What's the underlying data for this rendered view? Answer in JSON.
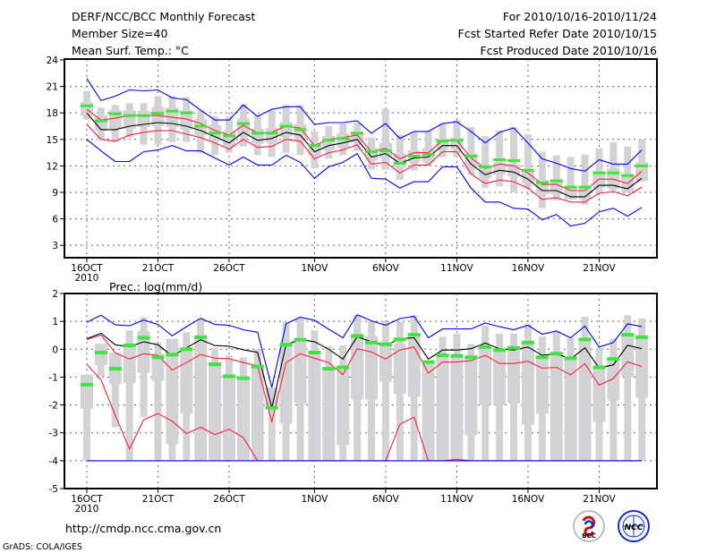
{
  "header": {
    "title": "DERF/NCC/BCC Monthly Forecast",
    "member_size": "Member Size=40",
    "variable": "Mean Surf. Temp.: °C",
    "period": "For 2010/10/16-2010/11/24",
    "started": "Fcst Started Refer Date 2010/10/15",
    "produced": "Fcst Produced Date 2010/10/16"
  },
  "footer": {
    "url": "http://cmdp.ncc.cma.gov.cn",
    "credit": "GrADS: COLA/IGES",
    "logos": [
      "BCC",
      "NCC"
    ]
  },
  "colors": {
    "max_min": "#0000ff",
    "spread": "#ff1e3c",
    "mean": "#000000",
    "obs": "#3ce63c",
    "box": "#d3d3d6"
  },
  "chart_data": [
    {
      "type": "line",
      "title": "Mean Surf. Temp.: °C",
      "xlabel": "",
      "ylabel": "",
      "x_days": 40,
      "x_tick_labels": [
        {
          "day": 0,
          "label": "16OCT"
        },
        {
          "day": 5,
          "label": "21OCT"
        },
        {
          "day": 10,
          "label": "26OCT"
        },
        {
          "day": 16,
          "label": "1NOV"
        },
        {
          "day": 21,
          "label": "6NOV"
        },
        {
          "day": 26,
          "label": "11NOV"
        },
        {
          "day": 31,
          "label": "16NOV"
        },
        {
          "day": 36,
          "label": "21NOV"
        }
      ],
      "year_label": "2010",
      "y_ticks": [
        3,
        6,
        9,
        12,
        15,
        18,
        21,
        24
      ],
      "ylim": [
        1.6,
        24.1
      ],
      "xlim": [
        -1.57,
        40.06
      ],
      "grid": true,
      "series": [
        {
          "name": "max",
          "color": "#0000ff",
          "values": [
            21.9,
            19.4,
            19.9,
            20.6,
            20.5,
            20.6,
            19.7,
            19.5,
            18.3,
            17.2,
            17.2,
            18.9,
            17.6,
            18.4,
            18.7,
            18.7,
            16.7,
            16.9,
            16.9,
            17.1,
            15.7,
            16.8,
            15.1,
            15.9,
            15.9,
            16.8,
            17.0,
            15.9,
            14.6,
            15.8,
            16.3,
            14.6,
            12.8,
            12.3,
            11.7,
            11.4,
            12.7,
            12.2,
            12.2,
            13.8
          ]
        },
        {
          "name": "upper",
          "color": "#ff1e3c",
          "values": [
            18.4,
            17.2,
            17.4,
            17.7,
            17.7,
            17.7,
            17.5,
            17.3,
            16.8,
            16.0,
            15.5,
            16.6,
            15.7,
            15.8,
            16.5,
            16.3,
            14.3,
            15.0,
            15.2,
            15.5,
            13.6,
            14.0,
            12.8,
            13.5,
            13.5,
            14.9,
            14.9,
            12.9,
            11.7,
            12.2,
            12.0,
            11.2,
            9.9,
            9.9,
            9.2,
            9.2,
            10.5,
            10.5,
            10.0,
            11.4
          ]
        },
        {
          "name": "mean",
          "color": "#000000",
          "values": [
            18.0,
            16.1,
            16.1,
            16.5,
            16.7,
            16.9,
            16.8,
            16.5,
            16.0,
            15.3,
            14.6,
            15.8,
            14.9,
            15.1,
            15.8,
            15.5,
            13.6,
            14.3,
            14.6,
            15.0,
            13.0,
            13.4,
            12.3,
            12.9,
            13.0,
            14.3,
            14.3,
            12.2,
            11.0,
            11.5,
            11.3,
            10.5,
            9.2,
            9.2,
            8.5,
            8.5,
            9.8,
            9.8,
            9.4,
            10.6
          ]
        },
        {
          "name": "lower",
          "color": "#ff1e3c",
          "values": [
            16.7,
            15.0,
            14.8,
            15.5,
            15.8,
            16.0,
            16.0,
            15.6,
            15.2,
            14.6,
            13.9,
            15.0,
            14.1,
            14.2,
            15.0,
            14.8,
            12.8,
            13.5,
            13.8,
            14.4,
            12.2,
            12.4,
            11.2,
            12.1,
            12.1,
            13.6,
            13.6,
            11.1,
            10.0,
            10.4,
            10.2,
            9.5,
            8.2,
            8.4,
            7.9,
            7.9,
            8.9,
            9.1,
            8.6,
            9.6
          ]
        },
        {
          "name": "min",
          "color": "#0000ff",
          "values": [
            15.0,
            13.7,
            12.5,
            12.5,
            13.6,
            13.8,
            14.3,
            13.7,
            13.7,
            12.9,
            12.1,
            13.0,
            12.1,
            12.1,
            13.2,
            12.4,
            10.6,
            11.9,
            12.4,
            13.4,
            10.6,
            10.5,
            9.5,
            10.2,
            10.2,
            11.9,
            11.9,
            9.5,
            7.9,
            7.9,
            7.2,
            7.1,
            5.9,
            6.5,
            5.2,
            5.5,
            6.8,
            7.2,
            6.3,
            7.3
          ]
        }
      ],
      "observed": [
        18.8,
        17.1,
        17.9,
        17.7,
        17.7,
        17.95,
        18.2,
        18.0,
        16.5,
        15.7,
        15.4,
        16.8,
        15.7,
        15.7,
        16.5,
        16.1,
        14.3,
        14.9,
        15.1,
        15.7,
        13.6,
        13.7,
        12.3,
        13.1,
        13.3,
        14.8,
        14.9,
        13.1,
        11.9,
        12.7,
        12.6,
        11.5,
        10.1,
        10.3,
        9.6,
        9.6,
        11.2,
        11.2,
        10.9,
        12.0
      ],
      "whisker_high": [
        20.5,
        18.6,
        18.9,
        19.1,
        19.1,
        19.9,
        19.9,
        19.8,
        18.3,
        17.6,
        17.6,
        19.0,
        17.8,
        18.3,
        18.9,
        18.9,
        15.9,
        16.5,
        16.8,
        16.9,
        15.2,
        18.5,
        15.5,
        15.8,
        15.9,
        16.8,
        17.2,
        16.4,
        15.4,
        16.0,
        16.4,
        15.6,
        13.6,
        13.2,
        13.0,
        13.3,
        14.0,
        14.7,
        14.2,
        15.0
      ],
      "whisker_low": [
        17.3,
        15.0,
        14.7,
        15.2,
        14.4,
        14.4,
        14.7,
        14.7,
        13.5,
        13.2,
        13.5,
        14.2,
        13.2,
        13.0,
        13.5,
        13.2,
        11.7,
        12.8,
        13.2,
        13.7,
        11.6,
        11.6,
        10.4,
        11.5,
        12.0,
        13.0,
        13.0,
        11.0,
        9.5,
        9.7,
        9.0,
        9.4,
        7.2,
        8.1,
        8.2,
        7.6,
        9.0,
        9.2,
        9.0,
        10.2
      ],
      "box_high": [
        19.2,
        17.7,
        18.3,
        18.3,
        18.2,
        18.7,
        18.6,
        18.3,
        17.3,
        16.6,
        16.0,
        17.4,
        16.2,
        16.3,
        17.0,
        16.7,
        14.6,
        15.4,
        15.7,
        15.9,
        14.0,
        14.6,
        13.4,
        13.8,
        14.0,
        15.1,
        15.2,
        13.4,
        11.9,
        12.4,
        12.2,
        11.5,
        10.4,
        10.5,
        9.7,
        9.7,
        11.4,
        11.7,
        11.1,
        12.4
      ],
      "box_low": [
        17.7,
        16.0,
        16.2,
        16.2,
        16.4,
        16.5,
        16.4,
        16.1,
        15.5,
        14.8,
        14.2,
        15.3,
        14.5,
        14.6,
        15.3,
        15.0,
        13.1,
        13.8,
        14.1,
        14.6,
        12.6,
        12.9,
        11.8,
        12.4,
        12.4,
        13.8,
        13.8,
        11.7,
        10.6,
        11.0,
        10.8,
        10.0,
        8.8,
        8.8,
        8.2,
        8.2,
        9.5,
        9.4,
        9.0,
        10.3
      ]
    },
    {
      "type": "line",
      "title": "Prec.: log(mm/d)",
      "xlabel": "",
      "ylabel": "",
      "x_days": 40,
      "x_tick_labels": [
        {
          "day": 0,
          "label": "16OCT"
        },
        {
          "day": 5,
          "label": "21OCT"
        },
        {
          "day": 10,
          "label": "26OCT"
        },
        {
          "day": 16,
          "label": "1NOV"
        },
        {
          "day": 21,
          "label": "6NOV"
        },
        {
          "day": 26,
          "label": "11NOV"
        },
        {
          "day": 31,
          "label": "16NOV"
        },
        {
          "day": 36,
          "label": "21NOV"
        }
      ],
      "year_label": "2010",
      "y_ticks": [
        -5,
        -4,
        -3,
        -2,
        -1,
        0,
        1,
        2
      ],
      "ylim": [
        -5,
        2
      ],
      "xlim": [
        -1.57,
        40.06
      ],
      "grid": true,
      "series": [
        {
          "name": "max",
          "color": "#0000ff",
          "values": [
            0.97,
            1.22,
            0.88,
            0.84,
            1.05,
            0.89,
            0.48,
            0.81,
            1.11,
            0.89,
            0.86,
            0.7,
            0.61,
            -1.37,
            0.91,
            1.15,
            1.04,
            0.72,
            0.41,
            1.24,
            1.02,
            0.86,
            1.1,
            1.18,
            0.41,
            0.73,
            0.73,
            0.73,
            0.94,
            0.81,
            0.7,
            0.86,
            0.54,
            0.65,
            0.41,
            0.83,
            0.08,
            0.24,
            0.91,
            0.81
          ]
        },
        {
          "name": "upper",
          "color": "#ff1e3c",
          "values": [
            0.35,
            0.51,
            -0.13,
            -0.35,
            -0.16,
            -0.22,
            -0.75,
            -0.48,
            -0.19,
            -0.32,
            -0.34,
            -0.48,
            -0.59,
            -2.61,
            -0.48,
            -0.16,
            -0.32,
            -0.48,
            -0.91,
            0.02,
            -0.1,
            -0.35,
            -0.03,
            0.08,
            -0.86,
            -0.46,
            -0.46,
            -0.41,
            -0.22,
            -0.51,
            -0.51,
            -0.43,
            -0.68,
            -0.65,
            -0.92,
            -0.52,
            -1.29,
            -1.05,
            -0.45,
            -0.62
          ]
        },
        {
          "name": "mean",
          "color": "#000000",
          "values": [
            0.38,
            0.57,
            0.16,
            0.09,
            0.27,
            0.16,
            -0.24,
            0.05,
            0.34,
            0.13,
            0.11,
            -0.02,
            -0.11,
            -2.1,
            0.16,
            0.35,
            0.27,
            0.0,
            -0.35,
            0.45,
            0.27,
            0.13,
            0.38,
            0.41,
            -0.35,
            -0.03,
            -0.03,
            0.02,
            0.22,
            0.02,
            -0.03,
            0.08,
            -0.22,
            -0.16,
            -0.35,
            0.05,
            -0.67,
            -0.56,
            0.14,
            0.02
          ]
        },
        {
          "name": "lower",
          "color": "#ff1e3c",
          "values": [
            -0.54,
            -1.1,
            -2.37,
            -3.58,
            -2.53,
            -2.31,
            -2.58,
            -3.03,
            -2.8,
            -3.06,
            -2.87,
            -3.17,
            -4,
            -4,
            -4,
            -4,
            -4,
            -4,
            -4,
            -4,
            -4,
            -4,
            -2.69,
            -2.44,
            -4,
            -4,
            -3.95,
            -4,
            -4,
            -4,
            -4,
            -4,
            -4,
            -4,
            -4,
            -4,
            -4,
            -4,
            -4,
            -4
          ]
        },
        {
          "name": "min",
          "color": "#0000ff",
          "values": [
            -4,
            -4,
            -4,
            -4,
            -4,
            -4,
            -4,
            -4,
            -4,
            -4,
            -4,
            -4,
            -4,
            -4,
            -4,
            -4,
            -4,
            -4,
            -4,
            -4,
            -4,
            -4,
            -4,
            -4,
            -4,
            -4,
            -4,
            -4,
            -4,
            -4,
            -4,
            -4,
            -4,
            -4,
            -4,
            -4,
            -4,
            -4,
            -4,
            -4
          ]
        }
      ],
      "observed": [
        -1.27,
        -0.12,
        -0.7,
        0.14,
        0.41,
        -0.29,
        -0.19,
        0.0,
        0.43,
        -0.54,
        -0.97,
        -1.04,
        -0.62,
        -2.1,
        0.16,
        0.34,
        -0.12,
        -0.7,
        -0.65,
        0.48,
        0.24,
        0.18,
        0.35,
        0.52,
        -0.46,
        -0.22,
        -0.24,
        -0.29,
        0.08,
        -0.03,
        0.05,
        0.24,
        -0.29,
        -0.16,
        -0.32,
        0.35,
        -0.65,
        -0.35,
        0.52,
        0.43
      ],
      "whisker_high": [
        -0.91,
        0.19,
        -0.13,
        0.68,
        1.15,
        0.24,
        0.38,
        0.61,
        1.1,
        0.05,
        -0.22,
        -0.29,
        0.0,
        -1.38,
        0.97,
        1.1,
        0.68,
        0.11,
        0.13,
        1.22,
        0.99,
        0.99,
        0.97,
        1.22,
        -0.43,
        0.45,
        0.56,
        0.19,
        0.84,
        0.56,
        0.56,
        0.91,
        0.45,
        0.65,
        0.41,
        1.16,
        0.05,
        0.38,
        1.22,
        1.1
      ],
      "whisker_low": [
        -4,
        -0.97,
        -2.8,
        -4,
        -2.44,
        -4,
        -4,
        -4,
        -4,
        -4,
        -4,
        -4,
        -4,
        -4,
        -4,
        -4,
        -4,
        -4,
        -4,
        -4,
        -4,
        -4,
        -4,
        -4,
        -4,
        -4,
        -4,
        -4,
        -4,
        -4,
        -4,
        -4,
        -4,
        -4,
        -4,
        -4,
        -4,
        -4,
        -4,
        -4
      ],
      "box_high": [
        -0.91,
        0.19,
        -0.13,
        0.19,
        0.65,
        -0.16,
        0.38,
        0.0,
        0.43,
        -0.54,
        -0.97,
        -1.04,
        -0.62,
        -1.38,
        0.16,
        0.34,
        -0.12,
        -0.7,
        -0.65,
        0.48,
        0.48,
        0.22,
        0.18,
        0.52,
        -0.46,
        -0.22,
        -0.24,
        -0.29,
        0.08,
        -0.03,
        0.05,
        0.24,
        -0.29,
        -0.16,
        -0.32,
        0.35,
        -0.65,
        -0.35,
        0.52,
        0.43
      ],
      "box_low": [
        -2.13,
        -0.57,
        -1.26,
        -1.22,
        -0.84,
        -1.13,
        -3.41,
        -2.31,
        -4,
        -4,
        -4,
        -4,
        -4,
        -2.15,
        -2.67,
        -1.94,
        -4,
        -4,
        -3.44,
        -1.81,
        -1.81,
        -1.16,
        -1.59,
        -1.7,
        -4,
        -4,
        -4,
        -3.09,
        -2.0,
        -2.0,
        -1.94,
        -2.71,
        -2.31,
        -4,
        -4,
        -4,
        -2.6,
        -1.83,
        -0.99,
        -1.74
      ]
    }
  ]
}
